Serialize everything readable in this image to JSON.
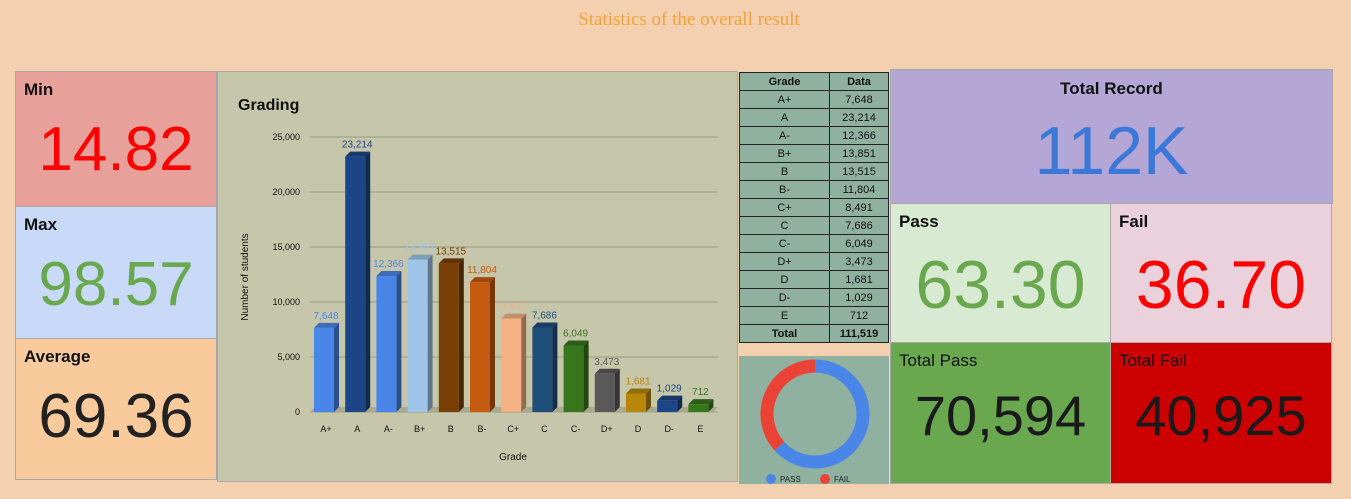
{
  "title": "Statistics of the overall result",
  "kpis": {
    "min": {
      "label": "Min",
      "value": "14.82"
    },
    "max": {
      "label": "Max",
      "value": "98.57"
    },
    "average": {
      "label": "Average",
      "value": "69.36"
    },
    "total_record": {
      "label": "Total Record",
      "value": "112K"
    },
    "pass": {
      "label": "Pass",
      "value": "63.30"
    },
    "fail": {
      "label": "Fail",
      "value": "36.70"
    },
    "total_pass": {
      "label": "Total Pass",
      "value": "70,594"
    },
    "total_fail": {
      "label": "Total Fail",
      "value": "40,925"
    }
  },
  "colors": {
    "min_bg": "#e8a09a",
    "min_text": "#ff0000",
    "max_bg": "#c9daf8",
    "max_text": "#6aa84f",
    "avg_bg": "#f9cb9c",
    "avg_text": "#222222",
    "record_bg": "#b4a7d6",
    "record_text": "#3c78d8",
    "pass_bg": "#d9ead3",
    "pass_text": "#6aa84f",
    "fail_bg": "#ead1dc",
    "fail_text": "#ff0000",
    "total_pass_bg": "#6aa84f",
    "total_fail_bg": "#cc0000"
  },
  "chart_data": {
    "type": "bar",
    "title": "Grading",
    "xlabel": "Grade",
    "ylabel": "Number of students",
    "ylim": [
      0,
      25000
    ],
    "yticks": [
      "0",
      "5,000",
      "10,000",
      "15,000",
      "20,000",
      "25,000"
    ],
    "grid": true,
    "categories": [
      "A+",
      "A",
      "A-",
      "B+",
      "B",
      "B-",
      "C+",
      "C",
      "C-",
      "D+",
      "D",
      "D-",
      "E"
    ],
    "values": [
      7648,
      23214,
      12366,
      13851,
      13515,
      11804,
      8491,
      7686,
      6049,
      3473,
      1681,
      1029,
      712
    ],
    "data_labels": [
      "7,648",
      "23,214",
      "12,366",
      "13,851",
      "13,515",
      "11,804",
      "8,491",
      "7,686",
      "6,049",
      "3,473",
      "1,681",
      "1,029",
      "712"
    ],
    "bar_colors": [
      "#4a86e8",
      "#1c4587",
      "#4a86e8",
      "#9fc5e8",
      "#783f04",
      "#c55a11",
      "#f4b183",
      "#1f4e79",
      "#38761d",
      "#595959",
      "#b8860b",
      "#1c4587",
      "#38761d"
    ],
    "label_colors": [
      "#4a86e8",
      "#1c4587",
      "#4a86e8",
      "#9fc5e8",
      "#783f04",
      "#c55a11",
      "#f4b183",
      "#1f4e79",
      "#38761d",
      "#595959",
      "#b8860b",
      "#1c4587",
      "#38761d"
    ]
  },
  "grade_table": {
    "headers": [
      "Grade",
      "Data"
    ],
    "rows": [
      [
        "A+",
        "7,648"
      ],
      [
        "A",
        "23,214"
      ],
      [
        "A-",
        "12,366"
      ],
      [
        "B+",
        "13,851"
      ],
      [
        "B",
        "13,515"
      ],
      [
        "B-",
        "11,804"
      ],
      [
        "C+",
        "8,491"
      ],
      [
        "C",
        "7,686"
      ],
      [
        "C-",
        "6,049"
      ],
      [
        "D+",
        "3,473"
      ],
      [
        "D",
        "1,681"
      ],
      [
        "D-",
        "1,029"
      ],
      [
        "E",
        "712"
      ]
    ],
    "total": [
      "Total",
      "111,519"
    ]
  },
  "donut": {
    "type": "pie",
    "series": [
      {
        "name": "PASS",
        "value": 63.3,
        "color": "#4a86e8"
      },
      {
        "name": "FAIL",
        "value": 36.7,
        "color": "#ea4335"
      }
    ]
  }
}
